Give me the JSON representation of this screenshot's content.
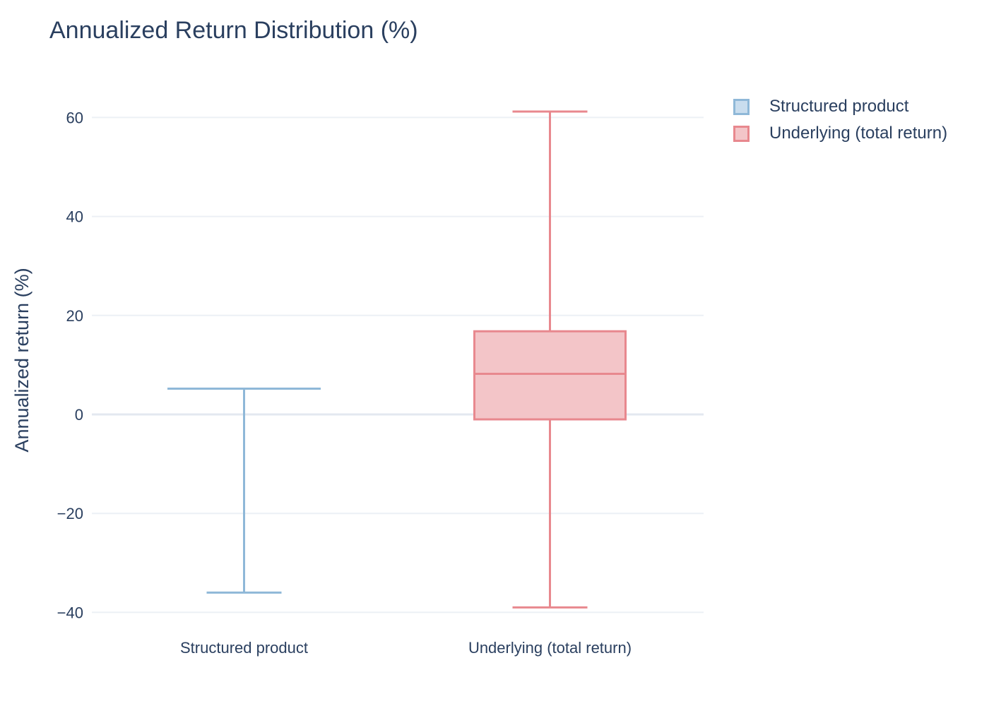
{
  "chart_data": {
    "type": "box",
    "title": "Annualized Return Distribution (%)",
    "xlabel": "",
    "ylabel": "Annualized return (%)",
    "ylim": [
      -42,
      65
    ],
    "yticks": [
      -40,
      -20,
      0,
      20,
      40,
      60
    ],
    "ytick_labels": [
      "−40",
      "−20",
      "0",
      "20",
      "40",
      "60"
    ],
    "grid": true,
    "legend_position": "top-right",
    "categories": [
      "Structured product",
      "Underlying (total return)"
    ],
    "series": [
      {
        "name": "Structured product",
        "color": "#8fb8d8",
        "fill": "#c9ddee",
        "min": -36,
        "q1": 5.2,
        "median": 5.2,
        "q3": 5.2,
        "max": 5.2
      },
      {
        "name": "Underlying (total return)",
        "color": "#e8888e",
        "fill": "#f3c5c8",
        "min": -39,
        "q1": -1,
        "median": 8.2,
        "q3": 16.8,
        "max": 61.2
      }
    ]
  }
}
